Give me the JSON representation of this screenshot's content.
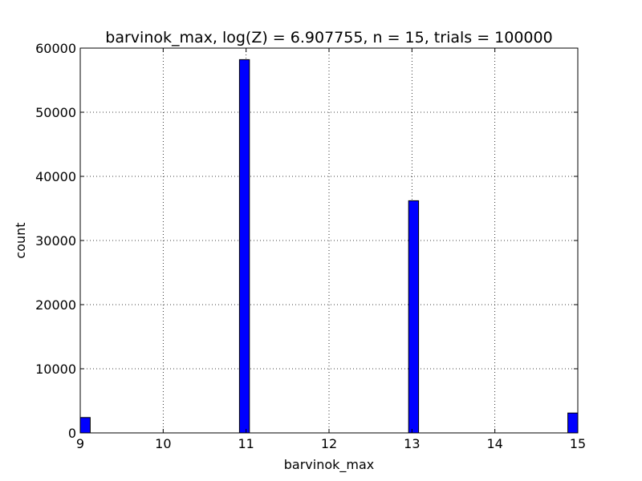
{
  "chart_data": {
    "type": "bar",
    "title": "barvinok_max, log(Z) = 6.907755, n = 15, trials = 100000",
    "xlabel": "barvinok_max",
    "ylabel": "count",
    "xlim": [
      9,
      15
    ],
    "ylim": [
      0,
      60000
    ],
    "xticks": [
      "9",
      "10",
      "11",
      "12",
      "13",
      "14",
      "15"
    ],
    "yticks": [
      "0",
      "10000",
      "20000",
      "30000",
      "40000",
      "50000",
      "60000"
    ],
    "grid": true,
    "bar_color": "#0000ff",
    "bins": [
      {
        "x0": 9.0,
        "x1": 9.12,
        "value": 2400
      },
      {
        "x0": 10.92,
        "x1": 11.04,
        "value": 58200
      },
      {
        "x0": 12.96,
        "x1": 13.08,
        "value": 36200
      },
      {
        "x0": 14.88,
        "x1": 15.0,
        "value": 3100
      }
    ]
  }
}
